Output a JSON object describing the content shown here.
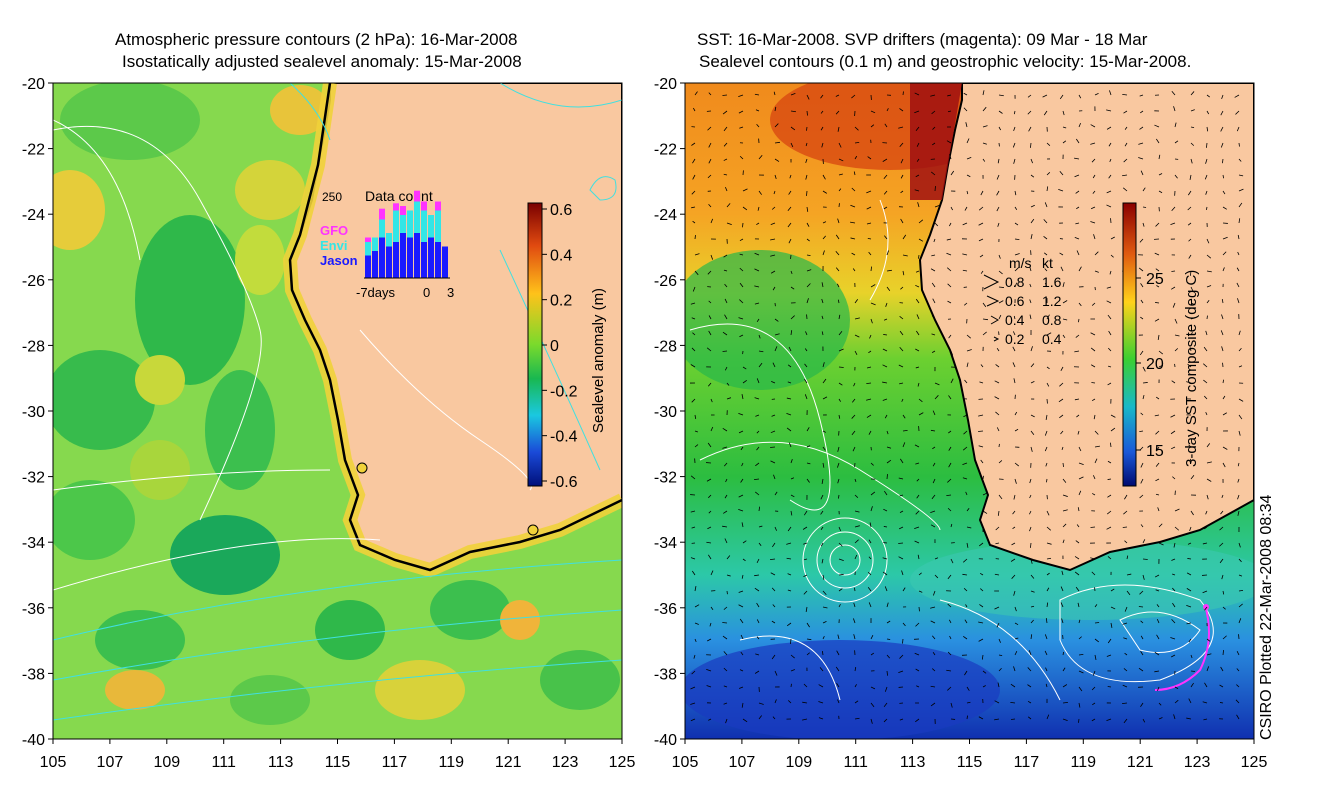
{
  "left_panel": {
    "title_line1": "Atmospheric pressure contours (2 hPa): 16-Mar-2008",
    "title_line2": "Isostatically adjusted sealevel anomaly: 15-Mar-2008",
    "lat_ticks": [
      "-20",
      "-22",
      "-24",
      "-26",
      "-28",
      "-30",
      "-32",
      "-34",
      "-36",
      "-38",
      "-40"
    ],
    "lon_ticks": [
      "105",
      "107",
      "109",
      "111",
      "113",
      "115",
      "117",
      "119",
      "121",
      "123",
      "125"
    ],
    "colorbar": {
      "label": "Sealevel anomaly (m)",
      "ticks": [
        "0.6",
        "0.4",
        "0.2",
        "0",
        "-0.2",
        "-0.4",
        "-0.6"
      ]
    },
    "data_count_inset": {
      "title": "Data count",
      "max_label": "250",
      "legend": [
        {
          "name": "GFO",
          "color": "#ff33ff"
        },
        {
          "name": "Envi",
          "color": "#33e6e6"
        },
        {
          "name": "Jason",
          "color": "#1a1aff"
        }
      ],
      "x_label_left": "-7days",
      "x_label_mid": "0",
      "x_label_right": "3",
      "bars": [
        {
          "jason": 0.25,
          "envi": 0.15,
          "gfo": 0.05
        },
        {
          "jason": 0.3,
          "envi": 0.15,
          "gfo": 0.0
        },
        {
          "jason": 0.45,
          "envi": 0.2,
          "gfo": 0.12
        },
        {
          "jason": 0.35,
          "envi": 0.15,
          "gfo": 0.0
        },
        {
          "jason": 0.4,
          "envi": 0.35,
          "gfo": 0.08
        },
        {
          "jason": 0.5,
          "envi": 0.2,
          "gfo": 0.1
        },
        {
          "jason": 0.45,
          "envi": 0.3,
          "gfo": 0.0
        },
        {
          "jason": 0.5,
          "envi": 0.35,
          "gfo": 0.12
        },
        {
          "jason": 0.4,
          "envi": 0.35,
          "gfo": 0.1
        },
        {
          "jason": 0.45,
          "envi": 0.25,
          "gfo": 0.0
        },
        {
          "jason": 0.4,
          "envi": 0.35,
          "gfo": 0.1
        },
        {
          "jason": 0.35,
          "envi": 0.0,
          "gfo": 0.0
        }
      ]
    },
    "colors": {
      "land": "#f9c8a0",
      "sea_green": "#5fd35f",
      "coast": "#000000"
    }
  },
  "right_panel": {
    "title_line1": "SST: 16-Mar-2008. SVP drifters (magenta): 09 Mar - 18 Mar",
    "title_line2": "Sealevel contours (0.1 m) and geostrophic velocity: 15-Mar-2008.",
    "lat_ticks": [
      "-20",
      "-22",
      "-24",
      "-26",
      "-28",
      "-30",
      "-32",
      "-34",
      "-36",
      "-38",
      "-40"
    ],
    "lon_ticks": [
      "105",
      "107",
      "109",
      "111",
      "113",
      "115",
      "117",
      "119",
      "121",
      "123",
      "125"
    ],
    "colorbar": {
      "label": "3-day SST composite (deg C)",
      "ticks": [
        "25",
        "20",
        "15"
      ]
    },
    "velocity_legend": {
      "header_ms": "m/s",
      "header_kt": "kt",
      "rows": [
        {
          "ms": "0.8",
          "kt": "1.6"
        },
        {
          "ms": "0.6",
          "kt": "1.2"
        },
        {
          "ms": "0.4",
          "kt": "0.8"
        },
        {
          "ms": "0.2",
          "kt": "0.4"
        }
      ]
    },
    "colors": {
      "land": "#f9c8a0",
      "drifter": "#ff33ff"
    }
  },
  "credit": "CSIRO Plotted 22-Mar-2008 08:34"
}
